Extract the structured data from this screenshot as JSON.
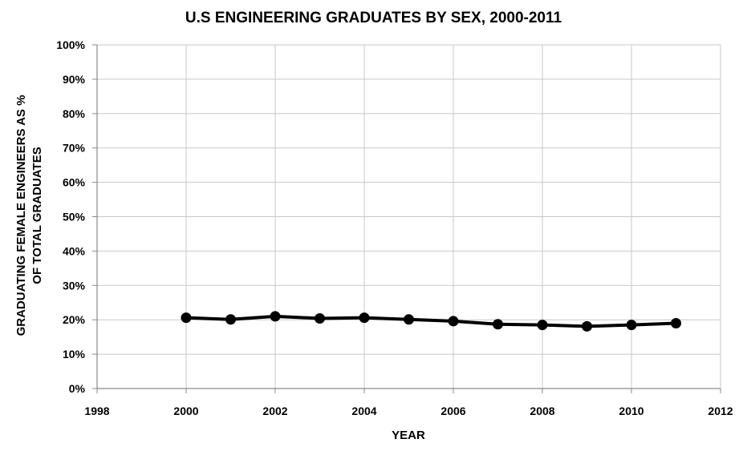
{
  "chart_data": {
    "type": "line",
    "title": "U.S ENGINEERING GRADUATES BY SEX, 2000-2011",
    "xlabel": "YEAR",
    "ylabel_lines": [
      "GRADUATING FEMALE ENGINEERS AS %",
      "OF TOTAL GRADUATES"
    ],
    "xlim": [
      1998,
      2012
    ],
    "ylim": [
      0,
      100
    ],
    "x_ticks": [
      1998,
      2000,
      2002,
      2004,
      2006,
      2008,
      2010,
      2012
    ],
    "y_ticks": [
      "0%",
      "10%",
      "20%",
      "30%",
      "40%",
      "50%",
      "60%",
      "70%",
      "80%",
      "90%",
      "100%"
    ],
    "grid": true,
    "legend": "none",
    "line_color": "#000000",
    "series": [
      {
        "x": [
          2000,
          2001,
          2002,
          2003,
          2004,
          2005,
          2006,
          2007,
          2008,
          2009,
          2010,
          2011
        ],
        "y": [
          20.6,
          20.1,
          21.0,
          20.4,
          20.6,
          20.1,
          19.6,
          18.7,
          18.5,
          18.1,
          18.5,
          19.0
        ]
      }
    ]
  }
}
